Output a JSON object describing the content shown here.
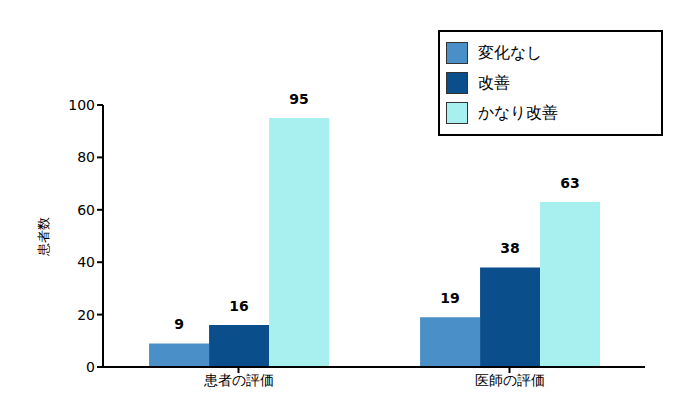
{
  "chart_data": {
    "type": "bar",
    "y_label": "患者数",
    "categories": [
      "患者の評価",
      "医師の評価"
    ],
    "series": [
      {
        "name": "変化なし",
        "color": "#4a8fc7",
        "values": [
          9,
          19
        ]
      },
      {
        "name": "改善",
        "color": "#0a4f8c",
        "values": [
          16,
          38
        ]
      },
      {
        "name": "かなり改善",
        "color": "#a8f0f0",
        "values": [
          95,
          63
        ]
      }
    ],
    "ylim": [
      0,
      100
    ],
    "yticks": [
      0,
      20,
      40,
      60,
      80,
      100
    ],
    "grid": false,
    "legend": "upper right",
    "data_labels": true
  }
}
